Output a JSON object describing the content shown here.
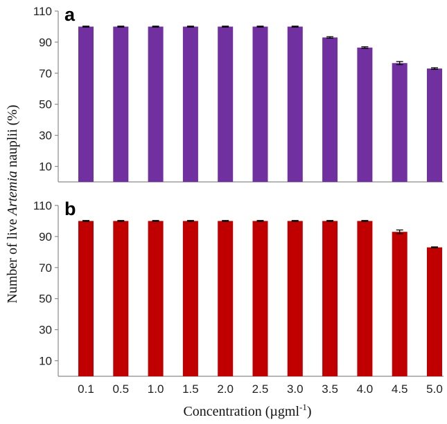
{
  "chart_data": [
    {
      "type": "bar",
      "panel_label": "a",
      "categories": [
        "0.1",
        "0.5",
        "1.0",
        "1.5",
        "2.0",
        "2.5",
        "3.0",
        "3.5",
        "4.0",
        "4.5",
        "5.0"
      ],
      "values": [
        100,
        100,
        100,
        100,
        100,
        100,
        100,
        93,
        86.5,
        76.5,
        73
      ],
      "error": [
        0.3,
        0.3,
        0.3,
        0.3,
        0.3,
        0.3,
        0.3,
        0.5,
        0.5,
        1.0,
        0.5
      ],
      "color": "#7030a0",
      "yticks": [
        10,
        30,
        50,
        70,
        90,
        110
      ],
      "ylim": [
        0,
        110
      ]
    },
    {
      "type": "bar",
      "panel_label": "b",
      "categories": [
        "0.1",
        "0.5",
        "1.0",
        "1.5",
        "2.0",
        "2.5",
        "3.0",
        "3.5",
        "4.0",
        "4.5",
        "5.0"
      ],
      "values": [
        100,
        100,
        100,
        100,
        100,
        100,
        100,
        100,
        100,
        93,
        83
      ],
      "error": [
        0.3,
        0.3,
        0.3,
        0.3,
        0.3,
        0.3,
        0.3,
        0.3,
        0.3,
        1.2,
        0.3
      ],
      "color": "#c00000",
      "yticks": [
        10,
        30,
        50,
        70,
        90,
        110
      ],
      "ylim": [
        0,
        110
      ]
    }
  ],
  "axes": {
    "ylabel_prefix": "Number of live ",
    "ylabel_italic": "Artemia",
    "ylabel_suffix": " nauplii (%)",
    "xlabel_main": "Concentration (µgml",
    "xlabel_sup": "-1",
    "xlabel_close": ")"
  }
}
